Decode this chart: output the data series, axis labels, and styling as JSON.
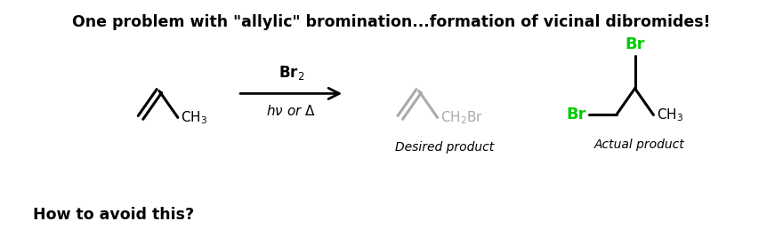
{
  "title": "One problem with \"allylic\" bromination...formation of vicinal dibromides!",
  "subtitle": "How to avoid this?",
  "title_fontsize": 12.5,
  "subtitle_fontsize": 12.5,
  "bg_color": "#ffffff",
  "black": "#000000",
  "gray": "#aaaaaa",
  "green": "#00cc00",
  "desired_label": "Desired product",
  "actual_label": "Actual product"
}
